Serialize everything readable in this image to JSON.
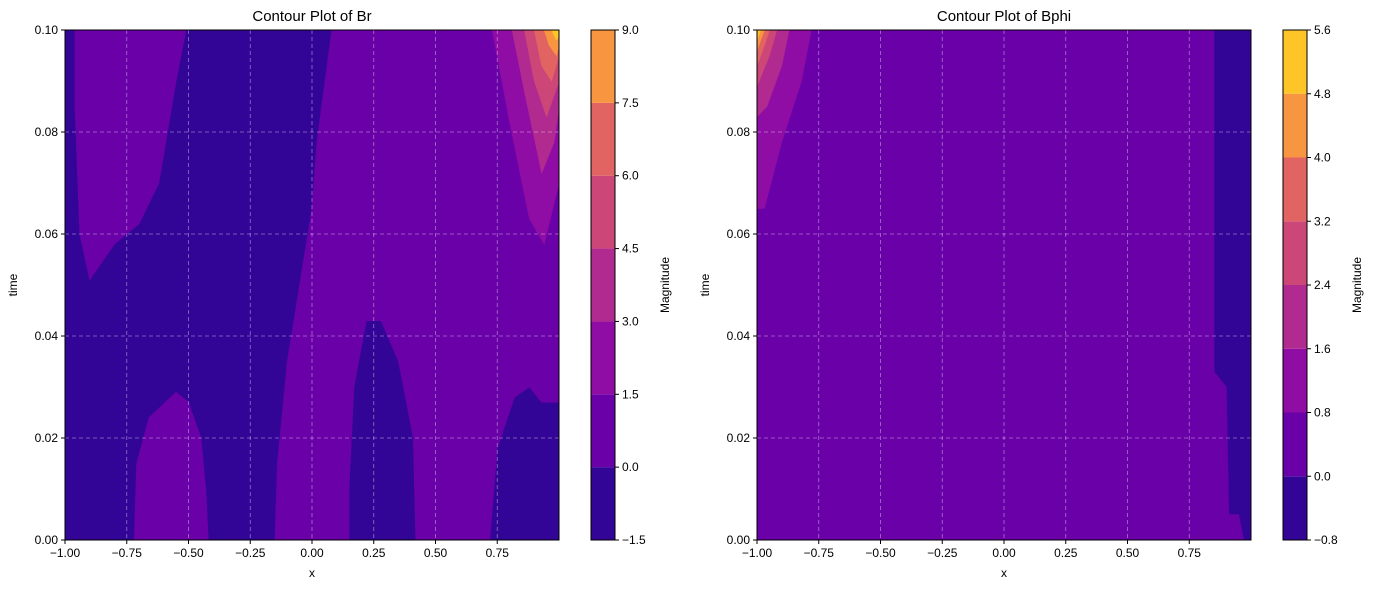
{
  "chart_data": [
    {
      "type": "contour",
      "title": "Contour Plot of Br",
      "xlabel": "x",
      "ylabel": "time",
      "xlim": [
        -1.0,
        1.0
      ],
      "ylim": [
        0.0,
        0.1
      ],
      "grid": true,
      "xticks": [
        "−1.00",
        "−0.75",
        "−0.50",
        "−0.25",
        "0.00",
        "0.25",
        "0.50",
        "0.75"
      ],
      "xtick_values": [
        -1.0,
        -0.75,
        -0.5,
        -0.25,
        0.0,
        0.25,
        0.5,
        0.75
      ],
      "yticks": [
        "0.00",
        "0.02",
        "0.04",
        "0.06",
        "0.08",
        "0.10"
      ],
      "ytick_values": [
        0.0,
        0.02,
        0.04,
        0.06,
        0.08,
        0.1
      ],
      "colorbar": {
        "label": "Magnitude",
        "levels": [
          -1.5,
          0.0,
          1.5,
          3.0,
          4.5,
          6.0,
          7.5,
          9.0
        ],
        "ticks": [
          "−1.5",
          "0.0",
          "1.5",
          "3.0",
          "4.5",
          "6.0",
          "7.5",
          "9.0"
        ],
        "colors": [
          "#330597",
          "#6a00a8",
          "#8f0da4",
          "#b12a90",
          "#cc4778",
          "#e16462",
          "#f89540",
          "#fdc527",
          "#f0f921"
        ]
      },
      "regions": [
        {
          "level": 1,
          "points": [
            [
              -1.0,
              0.0
            ],
            [
              -1.0,
              0.1
            ],
            [
              -0.51,
              0.1
            ],
            [
              -0.55,
              0.09
            ],
            [
              -0.62,
              0.07
            ],
            [
              -0.7,
              0.062
            ],
            [
              -0.8,
              0.058
            ],
            [
              -0.9,
              0.051
            ],
            [
              -0.94,
              0.06
            ],
            [
              -0.96,
              0.085
            ],
            [
              -0.96,
              0.1
            ],
            [
              -1.0,
              0.1
            ]
          ]
        },
        {
          "level": 1,
          "points": [
            [
              -0.72,
              0.0
            ],
            [
              -0.71,
              0.015
            ],
            [
              -0.66,
              0.024
            ],
            [
              -0.55,
              0.029
            ],
            [
              -0.5,
              0.027
            ],
            [
              -0.45,
              0.02
            ],
            [
              -0.43,
              0.01
            ],
            [
              -0.42,
              0.0
            ]
          ]
        },
        {
          "level": 1,
          "points": [
            [
              -0.15,
              0.0
            ],
            [
              -0.14,
              0.015
            ],
            [
              -0.1,
              0.035
            ],
            [
              -0.05,
              0.05
            ],
            [
              0.0,
              0.065
            ],
            [
              0.02,
              0.078
            ],
            [
              0.08,
              0.1
            ],
            [
              1.0,
              0.1
            ],
            [
              1.0,
              0.027
            ],
            [
              0.93,
              0.027
            ],
            [
              0.88,
              0.03
            ],
            [
              0.82,
              0.028
            ],
            [
              0.75,
              0.018
            ],
            [
              0.72,
              0.0
            ],
            [
              0.42,
              0.0
            ],
            [
              0.41,
              0.02
            ],
            [
              0.35,
              0.035
            ],
            [
              0.28,
              0.043
            ],
            [
              0.22,
              0.043
            ],
            [
              0.17,
              0.03
            ],
            [
              0.15,
              0.01
            ],
            [
              0.15,
              0.0
            ]
          ]
        },
        {
          "level": 2,
          "points": [
            [
              0.73,
              0.1
            ],
            [
              0.8,
              0.082
            ],
            [
              0.88,
              0.063
            ],
            [
              0.94,
              0.058
            ],
            [
              1.0,
              0.07
            ],
            [
              1.0,
              0.1
            ]
          ]
        },
        {
          "level": 3,
          "points": [
            [
              0.81,
              0.1
            ],
            [
              0.86,
              0.088
            ],
            [
              0.93,
              0.072
            ],
            [
              0.98,
              0.078
            ],
            [
              1.0,
              0.085
            ],
            [
              1.0,
              0.1
            ]
          ]
        },
        {
          "level": 4,
          "points": [
            [
              0.86,
              0.1
            ],
            [
              0.9,
              0.09
            ],
            [
              0.95,
              0.083
            ],
            [
              1.0,
              0.09
            ],
            [
              1.0,
              0.1
            ]
          ]
        },
        {
          "level": 5,
          "points": [
            [
              0.9,
              0.1
            ],
            [
              0.93,
              0.093
            ],
            [
              0.97,
              0.09
            ],
            [
              1.0,
              0.095
            ],
            [
              1.0,
              0.1
            ]
          ]
        },
        {
          "level": 6,
          "points": [
            [
              0.94,
              0.1
            ],
            [
              0.96,
              0.097
            ],
            [
              0.99,
              0.095
            ],
            [
              1.0,
              0.097
            ],
            [
              1.0,
              0.1
            ]
          ]
        },
        {
          "level": 7,
          "points": [
            [
              0.97,
              0.1
            ],
            [
              0.99,
              0.098
            ],
            [
              1.0,
              0.099
            ],
            [
              1.0,
              0.1
            ]
          ]
        }
      ]
    },
    {
      "type": "contour",
      "title": "Contour Plot of Bphi",
      "xlabel": "x",
      "ylabel": "time",
      "xlim": [
        -1.0,
        1.0
      ],
      "ylim": [
        0.0,
        0.1
      ],
      "grid": true,
      "xticks": [
        "−1.00",
        "−0.75",
        "−0.50",
        "−0.25",
        "0.00",
        "0.25",
        "0.50",
        "0.75"
      ],
      "xtick_values": [
        -1.0,
        -0.75,
        -0.5,
        -0.25,
        0.0,
        0.25,
        0.5,
        0.75
      ],
      "yticks": [
        "0.00",
        "0.02",
        "0.04",
        "0.06",
        "0.08",
        "0.10"
      ],
      "ytick_values": [
        0.0,
        0.02,
        0.04,
        0.06,
        0.08,
        0.1
      ],
      "colorbar": {
        "label": "Magnitude",
        "levels": [
          -0.8,
          0.0,
          0.8,
          1.6,
          2.4,
          3.2,
          4.0,
          4.8,
          5.6
        ],
        "ticks": [
          "−0.8",
          "0.0",
          "0.8",
          "1.6",
          "2.4",
          "3.2",
          "4.0",
          "4.8",
          "5.6"
        ],
        "colors": [
          "#330597",
          "#6a00a8",
          "#8f0da4",
          "#b12a90",
          "#cc4778",
          "#e16462",
          "#f89540",
          "#fdc527",
          "#f0f921"
        ]
      },
      "regions": [
        {
          "level": 1,
          "points": [
            [
              -1.0,
              0.0
            ],
            [
              -1.0,
              0.1
            ],
            [
              0.85,
              0.1
            ],
            [
              0.85,
              0.033
            ],
            [
              0.9,
              0.03
            ],
            [
              0.91,
              0.005
            ],
            [
              0.95,
              0.005
            ],
            [
              0.97,
              0.0
            ]
          ]
        },
        {
          "level": 2,
          "points": [
            [
              -1.0,
              0.065
            ],
            [
              -1.0,
              0.1
            ],
            [
              -0.78,
              0.1
            ],
            [
              -0.82,
              0.09
            ],
            [
              -0.9,
              0.078
            ],
            [
              -0.97,
              0.065
            ]
          ]
        },
        {
          "level": 3,
          "points": [
            [
              -1.0,
              0.083
            ],
            [
              -1.0,
              0.1
            ],
            [
              -0.87,
              0.1
            ],
            [
              -0.9,
              0.093
            ],
            [
              -0.96,
              0.085
            ]
          ]
        },
        {
          "level": 4,
          "points": [
            [
              -1.0,
              0.089
            ],
            [
              -1.0,
              0.1
            ],
            [
              -0.92,
              0.1
            ],
            [
              -0.95,
              0.095
            ]
          ]
        },
        {
          "level": 5,
          "points": [
            [
              -1.0,
              0.093
            ],
            [
              -1.0,
              0.1
            ],
            [
              -0.95,
              0.1
            ],
            [
              -0.97,
              0.097
            ]
          ]
        },
        {
          "level": 6,
          "points": [
            [
              -1.0,
              0.096
            ],
            [
              -1.0,
              0.1
            ],
            [
              -0.97,
              0.1
            ],
            [
              -0.985,
              0.098
            ]
          ]
        },
        {
          "level": 7,
          "points": [
            [
              -1.0,
              0.098
            ],
            [
              -1.0,
              0.1
            ],
            [
              -0.985,
              0.1
            ]
          ]
        }
      ]
    }
  ]
}
